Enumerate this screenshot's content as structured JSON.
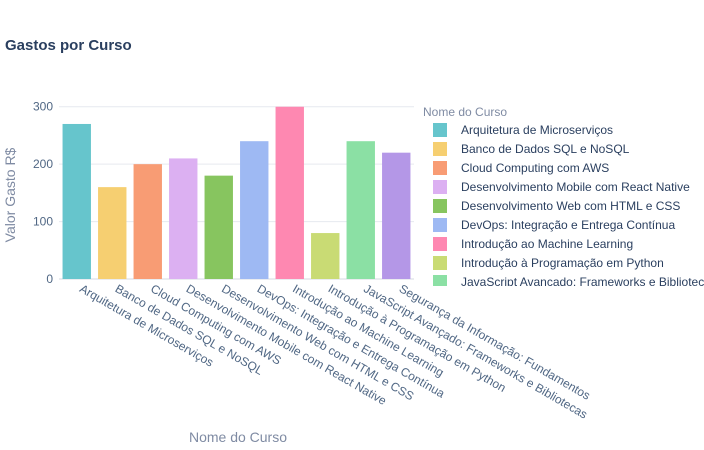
{
  "chart_data": {
    "type": "bar",
    "title": "Gastos por Curso",
    "xlabel": "Nome do Curso",
    "ylabel": "Valor Gasto R$",
    "legend_title": "Nome do Curso",
    "legend_position": "right",
    "grid": true,
    "ylim": [
      0,
      310
    ],
    "yticks": [
      0,
      100,
      200,
      300
    ],
    "categories": [
      "Arquitetura de Microserviços",
      "Banco de Dados SQL e NoSQL",
      "Cloud Computing com AWS",
      "Desenvolvimento Mobile com React Native",
      "Desenvolvimento Web com HTML e CSS",
      "DevOps: Integração e Entrega Contínua",
      "Introdução ao Machine Learning",
      "Introdução à Programação em Python",
      "JavaScript Avançado: Frameworks e Bibliotecas",
      "Segurança da Informação: Fundamentos"
    ],
    "values": [
      270,
      160,
      200,
      210,
      180,
      240,
      300,
      80,
      240,
      220
    ],
    "colors": [
      "#66c5cc",
      "#f6cf71",
      "#f89c74",
      "#dcb0f2",
      "#87c55f",
      "#9eb9f3",
      "#fe88b1",
      "#c9db74",
      "#8be0a4",
      "#b497e7"
    ]
  }
}
